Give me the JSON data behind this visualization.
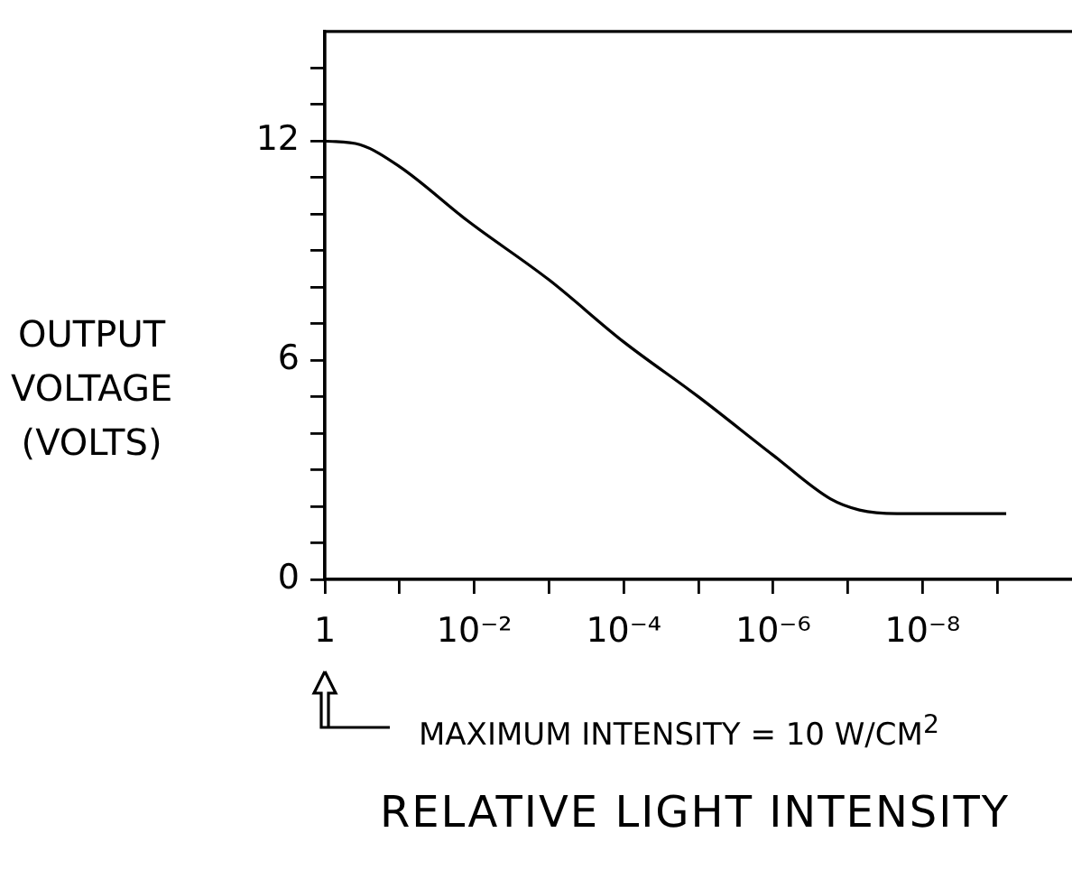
{
  "chart_data": {
    "type": "line",
    "xlabel": "RELATIVE LIGHT INTENSITY",
    "ylabel": "OUTPUT VOLTAGE (VOLTS)",
    "annotations": [
      "MAXIMUM INTENSITY = 10 W/CM$^{2}$"
    ],
    "log": "x",
    "x": [
      1,
      0.34,
      0.1,
      0.012,
      0.001,
      0.0001,
      1e-05,
      1e-06,
      1.7e-07,
      7e-08,
      2.2e-08,
      7.6e-10
    ],
    "series": [
      {
        "color": "#000000",
        "values": [
          12.0,
          11.9,
          11.3,
          9.8,
          8.2,
          6.5,
          5.0,
          3.4,
          2.2,
          1.9,
          1.8,
          1.8
        ]
      }
    ],
    "xlim": [
      1,
      1e-10
    ],
    "xticks": [
      1,
      {
        "value": 0.1,
        "label": null
      },
      {
        "value": 0.01,
        "label": "10⁻²"
      },
      {
        "value": 0.001,
        "label": null
      },
      {
        "value": 0.0001,
        "label": "10⁻⁴"
      },
      {
        "value": 1e-05,
        "label": null
      },
      {
        "value": 1e-06,
        "label": "10⁻⁶"
      },
      {
        "value": 1e-07,
        "label": null
      },
      {
        "value": 1e-08,
        "label": "10⁻⁸"
      },
      {
        "value": 1e-09,
        "label": null
      }
    ],
    "ylim": [
      0,
      15
    ],
    "yticks": [
      0,
      {
        "value": 1,
        "label": null
      },
      {
        "value": 2,
        "label": null
      },
      {
        "value": 3,
        "label": null
      },
      {
        "value": 4,
        "label": null
      },
      {
        "value": 5,
        "label": null
      },
      6,
      {
        "value": 7,
        "label": null
      },
      {
        "value": 8,
        "label": null
      },
      {
        "value": 9,
        "label": null
      },
      {
        "value": 10,
        "label": null
      },
      {
        "value": 11,
        "label": null
      },
      12,
      {
        "value": 13,
        "label": null
      },
      {
        "value": 14,
        "label": null
      }
    ]
  }
}
